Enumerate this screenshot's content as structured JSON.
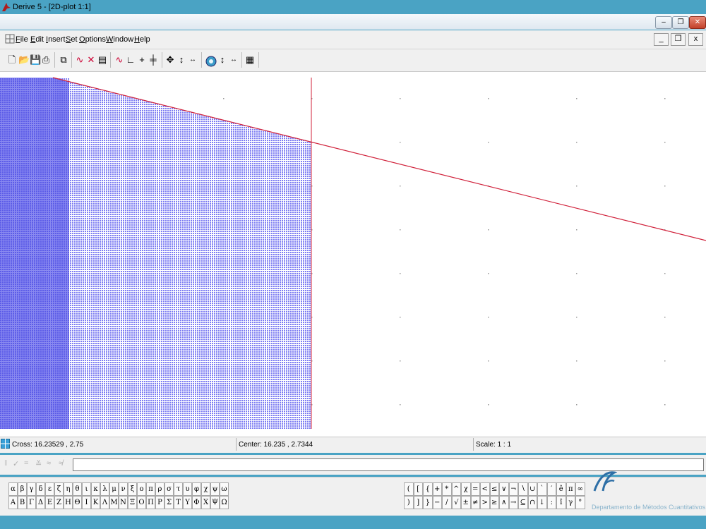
{
  "window": {
    "title": "Derive 5 - [2D-plot 1:1]"
  },
  "menu": [
    {
      "label": "File",
      "key": "F",
      "rest": "ile"
    },
    {
      "label": "Edit",
      "key": "E",
      "rest": "dit"
    },
    {
      "label": "Insert",
      "key": "I",
      "rest": "nsert"
    },
    {
      "label": "Set",
      "key": "S",
      "rest": "et"
    },
    {
      "label": "Options",
      "key": "O",
      "rest": "ptions"
    },
    {
      "label": "Window",
      "key": "W",
      "rest": "indow"
    },
    {
      "label": "Help",
      "key": "H",
      "rest": "elp"
    }
  ],
  "toolbar": [
    "new-file-icon",
    "open-folder-icon",
    "save-icon",
    "print-icon",
    "copy-icon",
    "plot-curve-icon",
    "delete-plot-icon",
    "algebra-window-icon",
    "auto-plot-icon",
    "trace-icon",
    "crosshair-icon",
    "crosshair-alt-icon",
    "pan-icon",
    "zoom-vertical-icon",
    "zoom-horizontal-icon",
    "insert-plot-icon",
    "zoom-in-vertical-icon",
    "zoom-in-horizontal-icon",
    "plot-settings-icon"
  ],
  "status": {
    "cross": "Cross: 16.23529 , 2.75",
    "center": "Center: 16.235 , 2.7344",
    "scale": "Scale: 1 : 1"
  },
  "entry": {
    "value": ""
  },
  "symbols": {
    "greek_lower": [
      "α",
      "β",
      "γ",
      "δ",
      "ε",
      "ζ",
      "η",
      "θ",
      "ι",
      "κ",
      "λ",
      "μ",
      "ν",
      "ξ",
      "ο",
      "π",
      "ρ",
      "σ",
      "τ",
      "υ",
      "φ",
      "χ",
      "ψ",
      "ω"
    ],
    "greek_upper": [
      "Α",
      "Β",
      "Γ",
      "Δ",
      "Ε",
      "Ζ",
      "Η",
      "Θ",
      "Ι",
      "Κ",
      "Λ",
      "Μ",
      "Ν",
      "Ξ",
      "Ο",
      "Π",
      "Ρ",
      "Σ",
      "Τ",
      "Υ",
      "Φ",
      "Χ",
      "Ψ",
      "Ω"
    ],
    "math_row1": [
      "(",
      "[",
      "{",
      "+",
      "*",
      "^",
      "χ",
      "=",
      "<",
      "≤",
      "∨",
      "¬",
      "∖",
      "∪",
      "`",
      "′",
      "ê",
      "π",
      "∞"
    ],
    "math_row2": [
      ")",
      "]",
      "}",
      "−",
      "/",
      "√",
      "±",
      "≠",
      ">",
      "≥",
      "∧",
      "→",
      "⊆",
      "∩",
      "↓",
      ":",
      "î",
      "γ",
      "°"
    ]
  },
  "logo": {
    "line1": "Departamento de Métodos Cuantitativos",
    "line2": ""
  },
  "colors": {
    "fill": "#6b6bf0",
    "line": "#d0203a",
    "accent": "#4aa3c4"
  }
}
